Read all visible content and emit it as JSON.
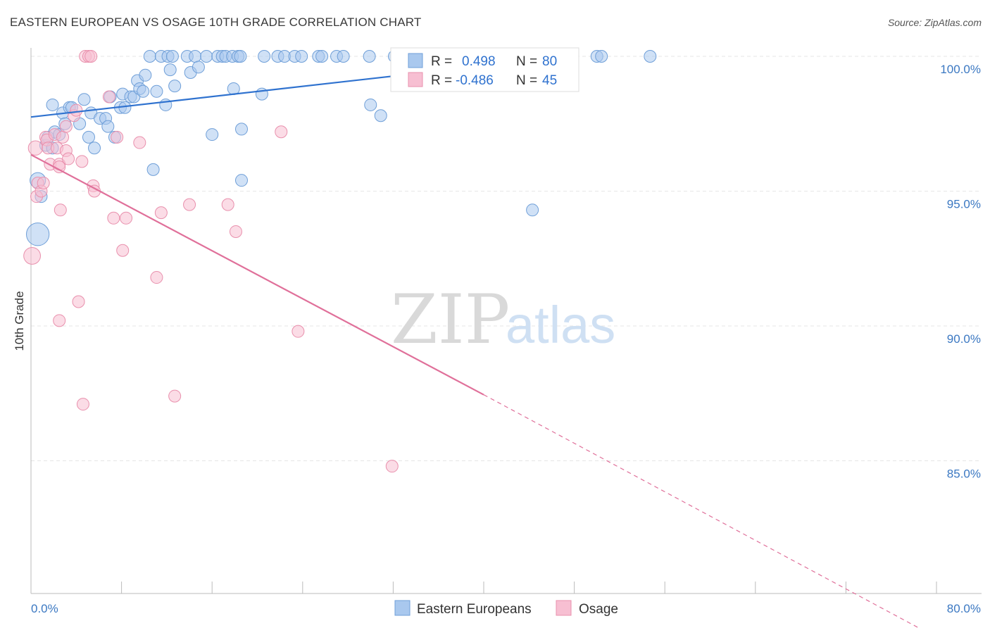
{
  "header": {
    "title": "EASTERN EUROPEAN VS OSAGE 10TH GRADE CORRELATION CHART",
    "source": "Source: ZipAtlas.com"
  },
  "watermark": {
    "part1": "ZIP",
    "part2": "atlas"
  },
  "colors": {
    "blue_fill": "#a9c8ee",
    "blue_stroke": "#6f9fd8",
    "blue_line": "#2f72cf",
    "pink_fill": "#f7bfd2",
    "pink_stroke": "#e990ad",
    "pink_line": "#e0709a",
    "label_blue": "#3b78c2"
  },
  "legend": {
    "rows": [
      {
        "r_label": "R =",
        "r_value": "0.498",
        "n_label": "N =",
        "n_value": "80"
      },
      {
        "r_label": "R =",
        "r_value": "-0.486",
        "n_label": "N =",
        "n_value": "45"
      }
    ],
    "bottom": [
      "Eastern Europeans",
      "Osage"
    ]
  },
  "chart_data": {
    "type": "scatter",
    "title": "EASTERN EUROPEAN VS OSAGE 10TH GRADE CORRELATION CHART",
    "xlabel": "",
    "ylabel": "10th Grade",
    "xlim": [
      0,
      80
    ],
    "ylim": [
      80.5,
      100.8
    ],
    "x_tick_labels": [
      "0.0%",
      "80.0%"
    ],
    "y_ticks": [
      85,
      90,
      95,
      100
    ],
    "y_tick_labels": [
      "85.0%",
      "90.0%",
      "95.0%",
      "100.0%"
    ],
    "grid": true,
    "legend_position": "top-center",
    "series": [
      {
        "name": "Eastern Europeans",
        "color": "#a9c8ee",
        "trend": {
          "x": [
            0,
            47.5
          ],
          "y": [
            97.75,
            100.0
          ],
          "dashed_to": null
        },
        "points": [
          [
            0.6,
            93.4,
            1.9
          ],
          [
            0.6,
            95.4,
            1.3
          ],
          [
            0.9,
            94.8,
            1.0
          ],
          [
            1.3,
            96.7,
            1.0
          ],
          [
            1.5,
            97.0,
            1.0
          ],
          [
            1.9,
            96.6,
            1.0
          ],
          [
            1.9,
            98.2,
            1.0
          ],
          [
            2.1,
            97.2,
            1.0
          ],
          [
            2.5,
            97.1,
            1.0
          ],
          [
            2.8,
            97.9,
            1.0
          ],
          [
            3.0,
            97.5,
            1.0
          ],
          [
            3.4,
            98.1,
            1.0
          ],
          [
            3.6,
            98.1,
            1.0
          ],
          [
            4.3,
            97.5,
            1.0
          ],
          [
            4.7,
            98.4,
            1.0
          ],
          [
            5.1,
            97.0,
            1.0
          ],
          [
            5.3,
            97.9,
            1.0
          ],
          [
            5.6,
            96.6,
            1.0
          ],
          [
            6.1,
            97.7,
            1.0
          ],
          [
            6.6,
            97.7,
            1.0
          ],
          [
            6.8,
            97.4,
            1.0
          ],
          [
            7.0,
            98.5,
            1.0
          ],
          [
            7.4,
            97.0,
            1.0
          ],
          [
            7.9,
            98.1,
            1.0
          ],
          [
            8.1,
            98.6,
            1.0
          ],
          [
            8.3,
            98.1,
            1.0
          ],
          [
            8.8,
            98.5,
            1.0
          ],
          [
            9.1,
            98.5,
            1.0
          ],
          [
            9.4,
            99.1,
            1.0
          ],
          [
            9.6,
            98.8,
            1.0
          ],
          [
            9.9,
            98.7,
            1.0
          ],
          [
            10.1,
            99.3,
            1.0
          ],
          [
            10.5,
            100.0,
            1.0
          ],
          [
            10.8,
            95.8,
            1.0
          ],
          [
            11.1,
            98.7,
            1.0
          ],
          [
            11.5,
            100.0,
            1.0
          ],
          [
            11.9,
            98.2,
            1.0
          ],
          [
            12.1,
            100.0,
            1.0
          ],
          [
            12.3,
            99.5,
            1.0
          ],
          [
            12.5,
            100.0,
            1.0
          ],
          [
            12.7,
            98.9,
            1.0
          ],
          [
            13.8,
            100.0,
            1.0
          ],
          [
            14.1,
            99.4,
            1.0
          ],
          [
            14.5,
            100.0,
            1.0
          ],
          [
            14.8,
            99.6,
            1.0
          ],
          [
            15.5,
            100.0,
            1.0
          ],
          [
            16.0,
            97.1,
            1.0
          ],
          [
            16.5,
            100.0,
            1.0
          ],
          [
            16.9,
            100.0,
            1.0
          ],
          [
            17.2,
            100.0,
            1.0
          ],
          [
            17.8,
            100.0,
            1.0
          ],
          [
            17.9,
            98.8,
            1.0
          ],
          [
            18.3,
            100.0,
            1.0
          ],
          [
            18.5,
            100.0,
            1.0
          ],
          [
            18.6,
            97.3,
            1.0
          ],
          [
            18.6,
            95.4,
            1.0
          ],
          [
            20.4,
            98.6,
            1.0
          ],
          [
            20.6,
            100.0,
            1.0
          ],
          [
            21.8,
            100.0,
            1.0
          ],
          [
            22.4,
            100.0,
            1.0
          ],
          [
            23.3,
            100.0,
            1.0
          ],
          [
            23.9,
            100.0,
            1.0
          ],
          [
            25.4,
            100.0,
            1.0
          ],
          [
            25.7,
            100.0,
            1.0
          ],
          [
            27.0,
            100.0,
            1.0
          ],
          [
            27.6,
            100.0,
            1.0
          ],
          [
            29.9,
            100.0,
            1.0
          ],
          [
            30.0,
            98.2,
            1.0
          ],
          [
            30.9,
            97.8,
            1.0
          ],
          [
            32.1,
            100.0,
            1.0
          ],
          [
            34.0,
            100.0,
            1.0
          ],
          [
            36.1,
            100.0,
            1.0
          ],
          [
            38.9,
            100.0,
            1.0
          ],
          [
            40.1,
            100.0,
            1.0
          ],
          [
            43.0,
            100.0,
            1.0
          ],
          [
            44.3,
            94.3,
            1.0
          ],
          [
            45.7,
            100.0,
            1.0
          ],
          [
            50.0,
            100.0,
            1.0
          ],
          [
            50.4,
            100.0,
            1.0
          ],
          [
            54.7,
            100.0,
            1.0
          ]
        ]
      },
      {
        "name": "Osage",
        "color": "#f7bfd2",
        "trend": {
          "x": [
            0,
            40.0
          ],
          "y": [
            96.35,
            87.45
          ],
          "dashed_to": [
            80.0,
            78.45
          ]
        },
        "points": [
          [
            0.1,
            92.6,
            1.4
          ],
          [
            0.4,
            96.6,
            1.2
          ],
          [
            0.5,
            94.8,
            1.0
          ],
          [
            0.6,
            95.3,
            1.0
          ],
          [
            0.9,
            95.0,
            1.0
          ],
          [
            1.1,
            95.3,
            1.0
          ],
          [
            1.3,
            97.0,
            1.0
          ],
          [
            1.4,
            96.9,
            1.0
          ],
          [
            1.5,
            96.6,
            1.0
          ],
          [
            1.7,
            96.0,
            1.0
          ],
          [
            2.1,
            97.1,
            1.0
          ],
          [
            2.3,
            96.6,
            1.0
          ],
          [
            2.5,
            96.0,
            1.0
          ],
          [
            2.5,
            95.9,
            1.0
          ],
          [
            2.5,
            90.2,
            1.0
          ],
          [
            2.6,
            94.3,
            1.0
          ],
          [
            2.8,
            97.0,
            1.0
          ],
          [
            3.1,
            97.4,
            1.0
          ],
          [
            3.1,
            96.5,
            1.0
          ],
          [
            3.3,
            96.2,
            1.0
          ],
          [
            3.8,
            97.8,
            1.0
          ],
          [
            4.0,
            98.0,
            1.0
          ],
          [
            4.2,
            90.9,
            1.0
          ],
          [
            4.5,
            96.1,
            1.0
          ],
          [
            4.6,
            87.1,
            1.0
          ],
          [
            4.8,
            100.0,
            1.0
          ],
          [
            5.1,
            100.0,
            1.0
          ],
          [
            5.3,
            100.0,
            1.0
          ],
          [
            5.5,
            95.2,
            1.0
          ],
          [
            5.6,
            95.0,
            1.0
          ],
          [
            6.9,
            98.5,
            1.0
          ],
          [
            7.3,
            94.0,
            1.0
          ],
          [
            7.6,
            97.0,
            1.0
          ],
          [
            8.1,
            92.8,
            1.0
          ],
          [
            8.4,
            94.0,
            1.0
          ],
          [
            9.6,
            96.8,
            1.0
          ],
          [
            11.1,
            91.8,
            1.0
          ],
          [
            11.5,
            94.2,
            1.0
          ],
          [
            12.7,
            87.4,
            1.0
          ],
          [
            14.0,
            94.5,
            1.0
          ],
          [
            17.4,
            94.5,
            1.0
          ],
          [
            18.1,
            93.5,
            1.0
          ],
          [
            22.1,
            97.2,
            1.0
          ],
          [
            23.6,
            89.8,
            1.0
          ],
          [
            31.9,
            84.8,
            1.0
          ]
        ]
      }
    ]
  }
}
